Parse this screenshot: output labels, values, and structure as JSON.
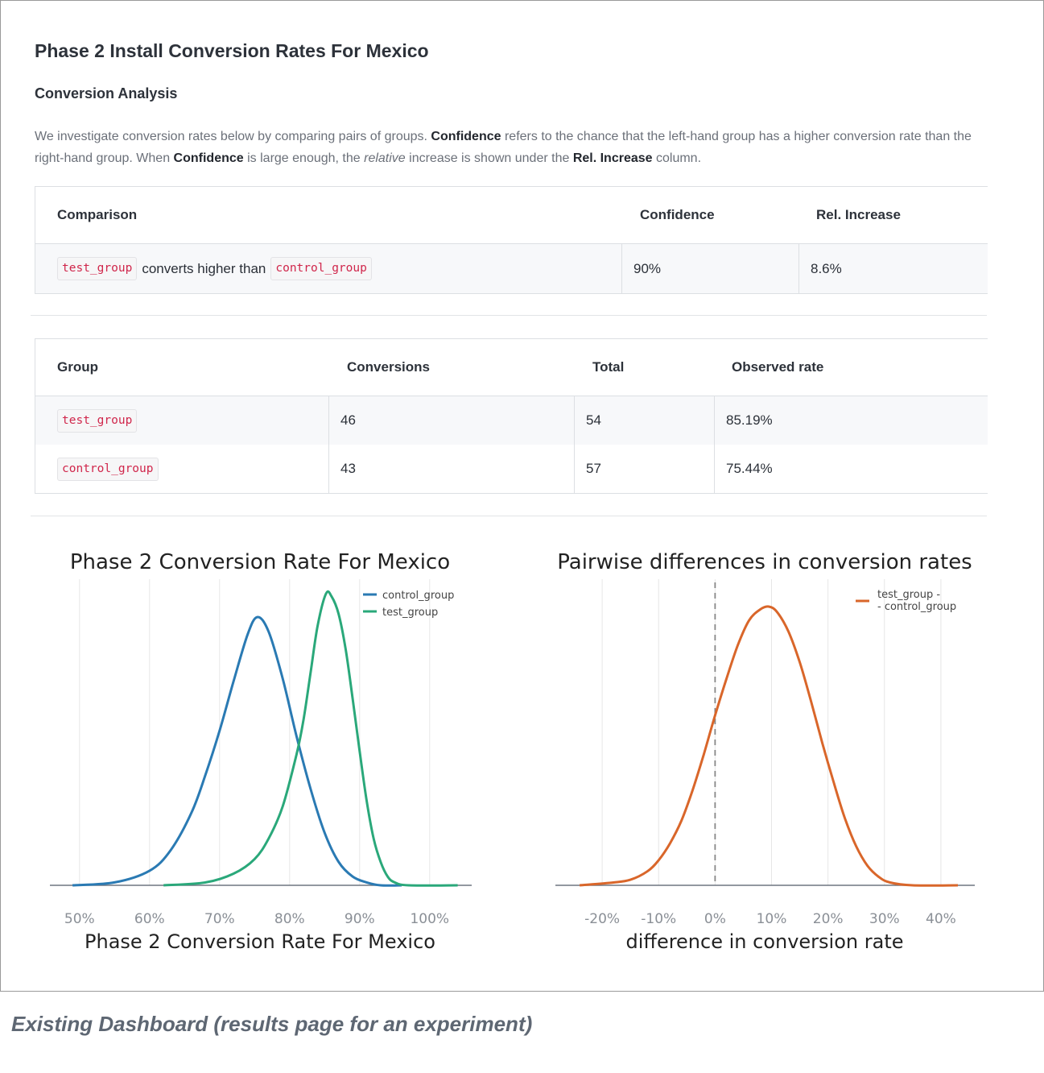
{
  "page": {
    "title": "Phase 2 Install Conversion Rates For Mexico",
    "section_title": "Conversion Analysis",
    "intro": {
      "t1": "We investigate conversion rates below by comparing pairs of groups. ",
      "b1": "Confidence",
      "t2": " refers to the chance that the left-hand group has a higher conversion rate than the right-hand group. When ",
      "b2": "Confidence",
      "t3": " is large enough, the ",
      "i1": "relative",
      "t4": " increase is shown under the ",
      "b3": "Rel. Increase",
      "t5": " column."
    }
  },
  "comparison_table": {
    "headers": [
      "Comparison",
      "Confidence",
      "Rel. Increase"
    ],
    "row": {
      "left_group": "test_group",
      "phrase": "converts higher than",
      "right_group": "control_group",
      "confidence": "90%",
      "rel_increase": "8.6%"
    }
  },
  "groups_table": {
    "headers": [
      "Group",
      "Conversions",
      "Total",
      "Observed rate"
    ],
    "rows": [
      {
        "group": "test_group",
        "conversions": "46",
        "total": "54",
        "rate": "85.19%"
      },
      {
        "group": "control_group",
        "conversions": "43",
        "total": "57",
        "rate": "75.44%"
      }
    ]
  },
  "caption": "Existing Dashboard (results page for an experiment)",
  "chart_data": [
    {
      "type": "line",
      "title": "Phase 2 Conversion Rate For Mexico",
      "xlabel": "Phase 2 Conversion Rate For Mexico",
      "ylabel": "",
      "x_ticks": [
        "50%",
        "60%",
        "70%",
        "80%",
        "90%",
        "100%"
      ],
      "x_tick_values": [
        50,
        60,
        70,
        80,
        90,
        100
      ],
      "xlim": [
        46,
        106
      ],
      "grid": "vertical",
      "legend_position": "top-right",
      "series": [
        {
          "name": "control_group",
          "color": "#2a7ab3",
          "x": [
            49,
            55,
            60,
            63,
            66,
            68,
            70,
            72,
            74,
            75.4,
            77,
            79,
            81,
            83,
            85,
            87,
            89,
            91,
            93,
            96
          ],
          "y": [
            0.0,
            0.01,
            0.05,
            0.12,
            0.25,
            0.38,
            0.53,
            0.7,
            0.86,
            0.92,
            0.87,
            0.71,
            0.51,
            0.33,
            0.18,
            0.08,
            0.03,
            0.01,
            0.0,
            0.0
          ]
        },
        {
          "name": "test_group",
          "color": "#2aa87a",
          "x": [
            62,
            68,
            72,
            75,
            77,
            79,
            81,
            82,
            83,
            84,
            85.2,
            86,
            87,
            88,
            89,
            90,
            91,
            92,
            93,
            94,
            95,
            97,
            104
          ],
          "y": [
            0.0,
            0.01,
            0.04,
            0.09,
            0.16,
            0.27,
            0.45,
            0.57,
            0.73,
            0.89,
            1.0,
            0.99,
            0.93,
            0.81,
            0.64,
            0.46,
            0.29,
            0.16,
            0.08,
            0.03,
            0.01,
            0.0,
            0.0
          ]
        }
      ]
    },
    {
      "type": "line",
      "title": "Pairwise differences in conversion rates",
      "xlabel": "difference in conversion rate",
      "ylabel": "",
      "x_ticks": [
        "-20%",
        "-10%",
        "0%",
        "10%",
        "20%",
        "30%",
        "40%"
      ],
      "x_tick_values": [
        -20,
        -10,
        0,
        10,
        20,
        30,
        40
      ],
      "xlim": [
        -28,
        46
      ],
      "grid": "vertical",
      "reference_line": {
        "x": 0,
        "style": "dashed"
      },
      "legend_position": "top-right",
      "series": [
        {
          "name": "test_group -\n- control_group",
          "legend_line1": "test_group -",
          "legend_line2": "- control_group",
          "color": "#d9662a",
          "x": [
            -24,
            -18,
            -15,
            -12,
            -10,
            -8,
            -6,
            -4,
            -2,
            0,
            2,
            4,
            6,
            8,
            9.5,
            11,
            13,
            15,
            17,
            19,
            21,
            23,
            25,
            27,
            29,
            31,
            35,
            43
          ],
          "y": [
            0.0,
            0.01,
            0.02,
            0.05,
            0.09,
            0.15,
            0.23,
            0.34,
            0.47,
            0.61,
            0.74,
            0.86,
            0.95,
            0.99,
            1.0,
            0.98,
            0.91,
            0.8,
            0.66,
            0.51,
            0.37,
            0.24,
            0.14,
            0.07,
            0.03,
            0.01,
            0.0,
            0.0
          ]
        }
      ]
    }
  ]
}
